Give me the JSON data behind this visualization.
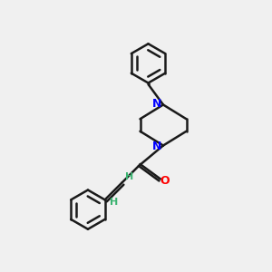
{
  "background_color": "#f0f0f0",
  "bond_color": "#1a1a1a",
  "N_color": "#0000ff",
  "O_color": "#ff0000",
  "H_color": "#3cb371",
  "bond_width": 1.8,
  "dbo": 0.12,
  "figsize": [
    3.0,
    3.0
  ],
  "dpi": 100,
  "xlim": [
    0,
    10
  ],
  "ylim": [
    0,
    10
  ]
}
